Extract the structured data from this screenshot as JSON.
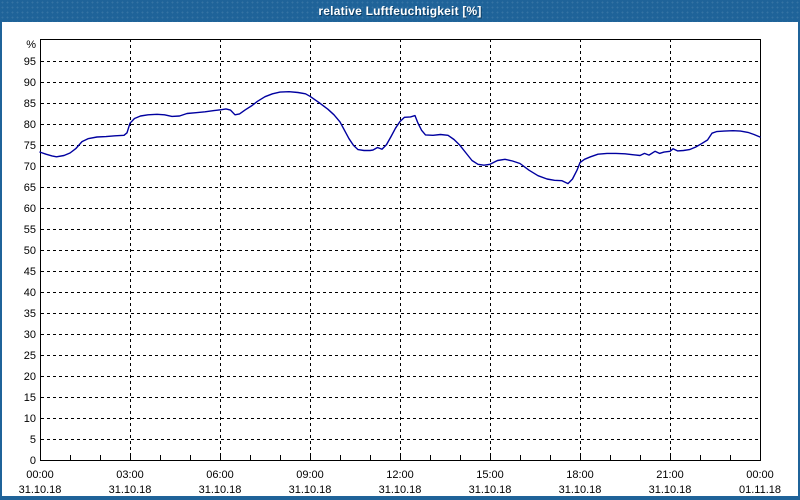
{
  "window": {
    "title": "relative Luftfeuchtigkeit [%]"
  },
  "colors": {
    "frame_blue": "#1f6399",
    "line_blue": "#0000a0",
    "grid_black": "#000000",
    "label_black": "#000000",
    "background": "#ffffff"
  },
  "chart_data": {
    "type": "line",
    "title": "relative Luftfeuchtigkeit [%]",
    "xlabel": "",
    "ylabel": "%",
    "ylim": [
      0,
      100.2
    ],
    "xlim": [
      0,
      24
    ],
    "grid": "dashed",
    "legend": "none",
    "minor_tick_hours": 1,
    "yticks": [
      0,
      5,
      10,
      15,
      20,
      25,
      30,
      35,
      40,
      45,
      50,
      55,
      60,
      65,
      70,
      75,
      80,
      85,
      90,
      95
    ],
    "xticks": [
      {
        "hour": 0,
        "time": "00:00",
        "date": "31.10.18"
      },
      {
        "hour": 3,
        "time": "03:00",
        "date": "31.10.18"
      },
      {
        "hour": 6,
        "time": "06:00",
        "date": "31.10.18"
      },
      {
        "hour": 9,
        "time": "09:00",
        "date": "31.10.18"
      },
      {
        "hour": 12,
        "time": "12:00",
        "date": "31.10.18"
      },
      {
        "hour": 15,
        "time": "15:00",
        "date": "31.10.18"
      },
      {
        "hour": 18,
        "time": "18:00",
        "date": "31.10.18"
      },
      {
        "hour": 21,
        "time": "21:00",
        "date": "31.10.18"
      },
      {
        "hour": 24,
        "time": "00:00",
        "date": "01.11.18"
      }
    ],
    "series": [
      {
        "name": "relative Luftfeuchtigkeit",
        "unit": "%",
        "color": "#0000a0",
        "points": [
          [
            0.0,
            73.3
          ],
          [
            0.2,
            72.8
          ],
          [
            0.4,
            72.4
          ],
          [
            0.55,
            72.2
          ],
          [
            0.8,
            72.5
          ],
          [
            1.0,
            73.1
          ],
          [
            1.2,
            74.2
          ],
          [
            1.4,
            75.8
          ],
          [
            1.6,
            76.5
          ],
          [
            1.9,
            76.9
          ],
          [
            2.2,
            77.0
          ],
          [
            2.5,
            77.2
          ],
          [
            2.8,
            77.3
          ],
          [
            2.9,
            77.9
          ],
          [
            3.0,
            80.2
          ],
          [
            3.15,
            81.3
          ],
          [
            3.35,
            81.9
          ],
          [
            3.6,
            82.2
          ],
          [
            3.9,
            82.3
          ],
          [
            4.15,
            82.2
          ],
          [
            4.4,
            81.8
          ],
          [
            4.65,
            81.9
          ],
          [
            4.9,
            82.5
          ],
          [
            5.2,
            82.7
          ],
          [
            5.5,
            82.9
          ],
          [
            5.8,
            83.2
          ],
          [
            6.05,
            83.4
          ],
          [
            6.2,
            83.6
          ],
          [
            6.35,
            83.3
          ],
          [
            6.5,
            82.2
          ],
          [
            6.65,
            82.4
          ],
          [
            6.85,
            83.4
          ],
          [
            7.05,
            84.3
          ],
          [
            7.25,
            85.4
          ],
          [
            7.5,
            86.5
          ],
          [
            7.75,
            87.2
          ],
          [
            8.0,
            87.6
          ],
          [
            8.3,
            87.7
          ],
          [
            8.6,
            87.5
          ],
          [
            8.85,
            87.2
          ],
          [
            9.0,
            86.6
          ],
          [
            9.3,
            85.1
          ],
          [
            9.6,
            83.5
          ],
          [
            9.8,
            82.2
          ],
          [
            10.0,
            80.5
          ],
          [
            10.15,
            78.5
          ],
          [
            10.3,
            76.5
          ],
          [
            10.45,
            74.9
          ],
          [
            10.6,
            73.9
          ],
          [
            10.8,
            73.7
          ],
          [
            11.0,
            73.7
          ],
          [
            11.1,
            73.8
          ],
          [
            11.25,
            74.4
          ],
          [
            11.4,
            74.0
          ],
          [
            11.55,
            75.1
          ],
          [
            11.7,
            77.0
          ],
          [
            11.85,
            79.0
          ],
          [
            12.0,
            80.6
          ],
          [
            12.15,
            81.6
          ],
          [
            12.35,
            81.7
          ],
          [
            12.5,
            82.0
          ],
          [
            12.6,
            80.2
          ],
          [
            12.72,
            78.5
          ],
          [
            12.85,
            77.4
          ],
          [
            13.1,
            77.3
          ],
          [
            13.35,
            77.5
          ],
          [
            13.6,
            77.3
          ],
          [
            13.8,
            76.3
          ],
          [
            14.0,
            74.9
          ],
          [
            14.2,
            73.1
          ],
          [
            14.4,
            71.3
          ],
          [
            14.6,
            70.4
          ],
          [
            14.8,
            70.2
          ],
          [
            15.0,
            70.4
          ],
          [
            15.25,
            71.3
          ],
          [
            15.5,
            71.6
          ],
          [
            15.75,
            71.2
          ],
          [
            16.0,
            70.6
          ],
          [
            16.3,
            69.0
          ],
          [
            16.6,
            67.7
          ],
          [
            16.9,
            66.9
          ],
          [
            17.15,
            66.6
          ],
          [
            17.4,
            66.5
          ],
          [
            17.6,
            65.8
          ],
          [
            17.75,
            66.9
          ],
          [
            17.9,
            69.0
          ],
          [
            18.0,
            70.8
          ],
          [
            18.15,
            71.6
          ],
          [
            18.35,
            72.2
          ],
          [
            18.6,
            72.8
          ],
          [
            18.9,
            73.0
          ],
          [
            19.2,
            73.0
          ],
          [
            19.5,
            72.9
          ],
          [
            19.75,
            72.7
          ],
          [
            20.0,
            72.5
          ],
          [
            20.15,
            73.0
          ],
          [
            20.3,
            72.6
          ],
          [
            20.5,
            73.5
          ],
          [
            20.65,
            73.0
          ],
          [
            20.8,
            73.3
          ],
          [
            21.0,
            73.5
          ],
          [
            21.1,
            74.1
          ],
          [
            21.25,
            73.6
          ],
          [
            21.45,
            73.7
          ],
          [
            21.65,
            73.9
          ],
          [
            21.85,
            74.5
          ],
          [
            22.05,
            75.3
          ],
          [
            22.25,
            76.2
          ],
          [
            22.4,
            77.8
          ],
          [
            22.55,
            78.2
          ],
          [
            22.8,
            78.3
          ],
          [
            23.1,
            78.4
          ],
          [
            23.35,
            78.3
          ],
          [
            23.6,
            78.0
          ],
          [
            23.8,
            77.5
          ],
          [
            24.0,
            76.9
          ]
        ]
      }
    ]
  }
}
